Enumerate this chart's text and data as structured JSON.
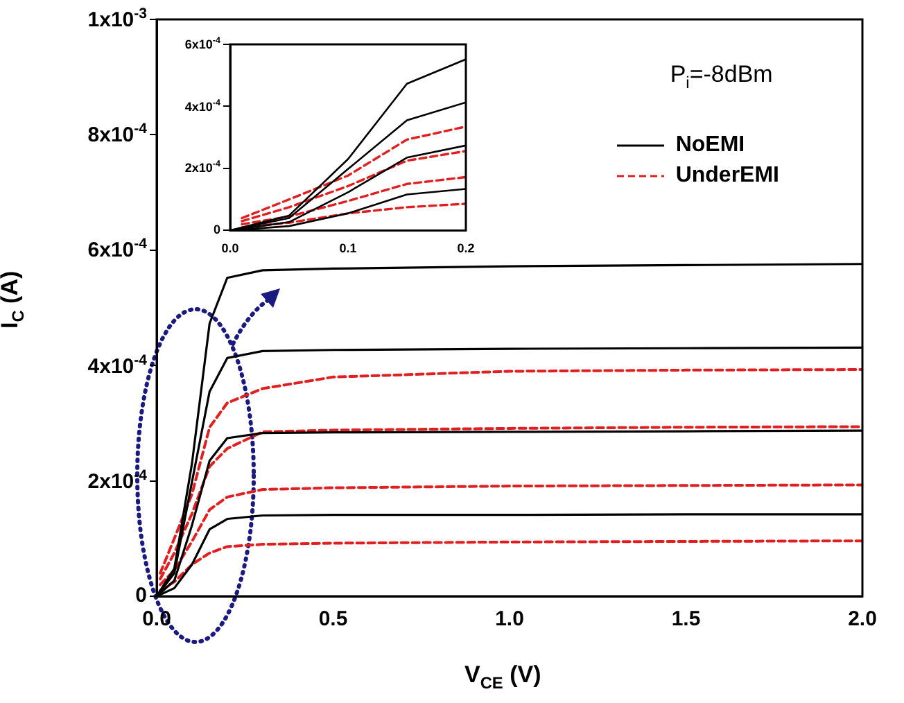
{
  "chart_data": [
    {
      "type": "line",
      "xlabel": "V$_{CE}$ (V)",
      "ylabel": "I$_{C}$ (A)",
      "annotations": [
        "P$_{i}$=-8dBm"
      ],
      "legend": "top right",
      "marker": "none",
      "grid": false,
      "xlim": [
        0,
        2
      ],
      "xticks": [
        {
          "value": 0,
          "label": "0.0"
        },
        {
          "value": 0.5,
          "label": "0.5"
        },
        {
          "value": 1,
          "label": "1.0"
        },
        {
          "value": 1.5,
          "label": "1.5"
        },
        {
          "value": 2,
          "label": "2.0"
        }
      ],
      "ylim": [
        0,
        0.001
      ],
      "yticks": [
        0,
        {
          "value": 0.0002,
          "label": "2x10$^{-4}$"
        },
        {
          "value": 0.0004,
          "label": "4x10$^{-4}$"
        },
        {
          "value": 0.0006,
          "label": "6x10$^{-4}$"
        },
        {
          "value": 0.0008,
          "label": "8x10$^{-4}$"
        },
        {
          "value": 0.001,
          "label": "1x10$^{-3}$"
        }
      ],
      "series": [
        {
          "name": "NoEMI",
          "color": "#000000",
          "line_style": "solid",
          "x": [
            0,
            0.05,
            0.1,
            0.15,
            0.2,
            0.3,
            0.5,
            1,
            1.5,
            2
          ],
          "values": [
            0,
            4.8e-05,
            0.00023,
            0.000473,
            0.000552,
            0.000565,
            0.000568,
            0.000572,
            0.000574,
            0.000576
          ]
        },
        {
          "color": "#000000",
          "line_style": "solid",
          "x": [
            0,
            0.05,
            0.1,
            0.15,
            0.2,
            0.3,
            0.5,
            1,
            1.5,
            2
          ],
          "values": [
            0,
            4e-05,
            0.000198,
            0.000355,
            0.000413,
            0.000425,
            0.000427,
            0.000429,
            0.00043,
            0.000431
          ]
        },
        {
          "color": "#000000",
          "line_style": "solid",
          "x": [
            0,
            0.05,
            0.1,
            0.15,
            0.2,
            0.3,
            0.5,
            1,
            1.5,
            2
          ],
          "values": [
            0,
            2.7e-05,
            0.000123,
            0.000235,
            0.000274,
            0.000283,
            0.000284,
            0.000285,
            0.000286,
            0.000287
          ]
        },
        {
          "color": "#000000",
          "line_style": "solid",
          "x": [
            0,
            0.05,
            0.1,
            0.15,
            0.2,
            0.3,
            0.5,
            1,
            1.5,
            2
          ],
          "values": [
            0,
            1.4e-05,
            5.5e-05,
            0.000116,
            0.000134,
            0.00014,
            0.000141,
            0.000141,
            0.000142,
            0.000142
          ]
        },
        {
          "name": "UnderEMI",
          "color": "#e02020",
          "line_style": "dashed",
          "x": [
            0.01,
            0.05,
            0.1,
            0.15,
            0.2,
            0.3,
            0.5,
            1,
            1.5,
            2
          ],
          "values": [
            4e-05,
            0.0001,
            0.000177,
            0.000293,
            0.000335,
            0.00036,
            0.00038,
            0.00039,
            0.000392,
            0.000393
          ]
        },
        {
          "color": "#e02020",
          "line_style": "dashed",
          "x": [
            0.01,
            0.05,
            0.1,
            0.15,
            0.2,
            0.3,
            0.5,
            1,
            1.5,
            2
          ],
          "values": [
            3e-05,
            7.5e-05,
            0.000143,
            0.000225,
            0.000256,
            0.000285,
            0.000288,
            0.000291,
            0.000293,
            0.000294
          ]
        },
        {
          "color": "#e02020",
          "line_style": "dashed",
          "x": [
            0.01,
            0.05,
            0.1,
            0.15,
            0.2,
            0.3,
            0.5,
            1,
            1.5,
            2
          ],
          "values": [
            2e-05,
            4.5e-05,
            9.5e-05,
            0.00015,
            0.000172,
            0.000185,
            0.000188,
            0.000191,
            0.000192,
            0.000193
          ]
        },
        {
          "color": "#e02020",
          "line_style": "dashed",
          "x": [
            0.01,
            0.05,
            0.1,
            0.15,
            0.2,
            0.3,
            0.5,
            1,
            1.5,
            2
          ],
          "values": [
            1e-05,
            2.5e-05,
            5.5e-05,
            7.5e-05,
            8.6e-05,
            9e-05,
            9.2e-05,
            9.4e-05,
            9.5e-05,
            9.6e-05
          ]
        }
      ]
    },
    {
      "type": "line",
      "marker": "none",
      "grid": false,
      "xlim": [
        0,
        0.2
      ],
      "xticks": [
        {
          "value": 0,
          "label": "0.0"
        },
        0.1,
        0.2
      ],
      "ylim": [
        0,
        0.0006
      ],
      "yticks": [
        0,
        {
          "value": 0.0002,
          "label": "2x10$^{-4}$"
        },
        {
          "value": 0.0004,
          "label": "4x10$^{-4}$"
        },
        {
          "value": 0.0006,
          "label": "6x10$^{-4}$"
        }
      ],
      "series": [
        {
          "color": "#000000",
          "line_style": "solid",
          "x": [
            0,
            0.05,
            0.1,
            0.15,
            0.2
          ],
          "values": [
            0,
            4.8e-05,
            0.00023,
            0.000473,
            0.000552
          ]
        },
        {
          "color": "#000000",
          "line_style": "solid",
          "x": [
            0,
            0.05,
            0.1,
            0.15,
            0.2
          ],
          "values": [
            0,
            4e-05,
            0.000198,
            0.000355,
            0.000413
          ]
        },
        {
          "color": "#000000",
          "line_style": "solid",
          "x": [
            0,
            0.05,
            0.1,
            0.15,
            0.2
          ],
          "values": [
            0,
            2.7e-05,
            0.000123,
            0.000235,
            0.000274
          ]
        },
        {
          "color": "#000000",
          "line_style": "solid",
          "x": [
            0,
            0.05,
            0.1,
            0.15,
            0.2
          ],
          "values": [
            0,
            1.4e-05,
            5.5e-05,
            0.000116,
            0.000134
          ]
        },
        {
          "color": "#e02020",
          "line_style": "dashed",
          "x": [
            0.01,
            0.05,
            0.1,
            0.15,
            0.2
          ],
          "values": [
            4e-05,
            0.0001,
            0.000177,
            0.000293,
            0.000335
          ]
        },
        {
          "color": "#e02020",
          "line_style": "dashed",
          "x": [
            0.01,
            0.05,
            0.1,
            0.15,
            0.2
          ],
          "values": [
            3e-05,
            7.5e-05,
            0.000143,
            0.000225,
            0.000256
          ]
        },
        {
          "color": "#e02020",
          "line_style": "dashed",
          "x": [
            0.01,
            0.05,
            0.1,
            0.15,
            0.2
          ],
          "values": [
            2e-05,
            4.5e-05,
            9.5e-05,
            0.00015,
            0.000172
          ]
        },
        {
          "color": "#e02020",
          "line_style": "dashed",
          "x": [
            0.01,
            0.05,
            0.1,
            0.15,
            0.2
          ],
          "values": [
            1e-05,
            2.5e-05,
            5.5e-05,
            7.5e-05,
            8.6e-05
          ]
        }
      ]
    }
  ]
}
